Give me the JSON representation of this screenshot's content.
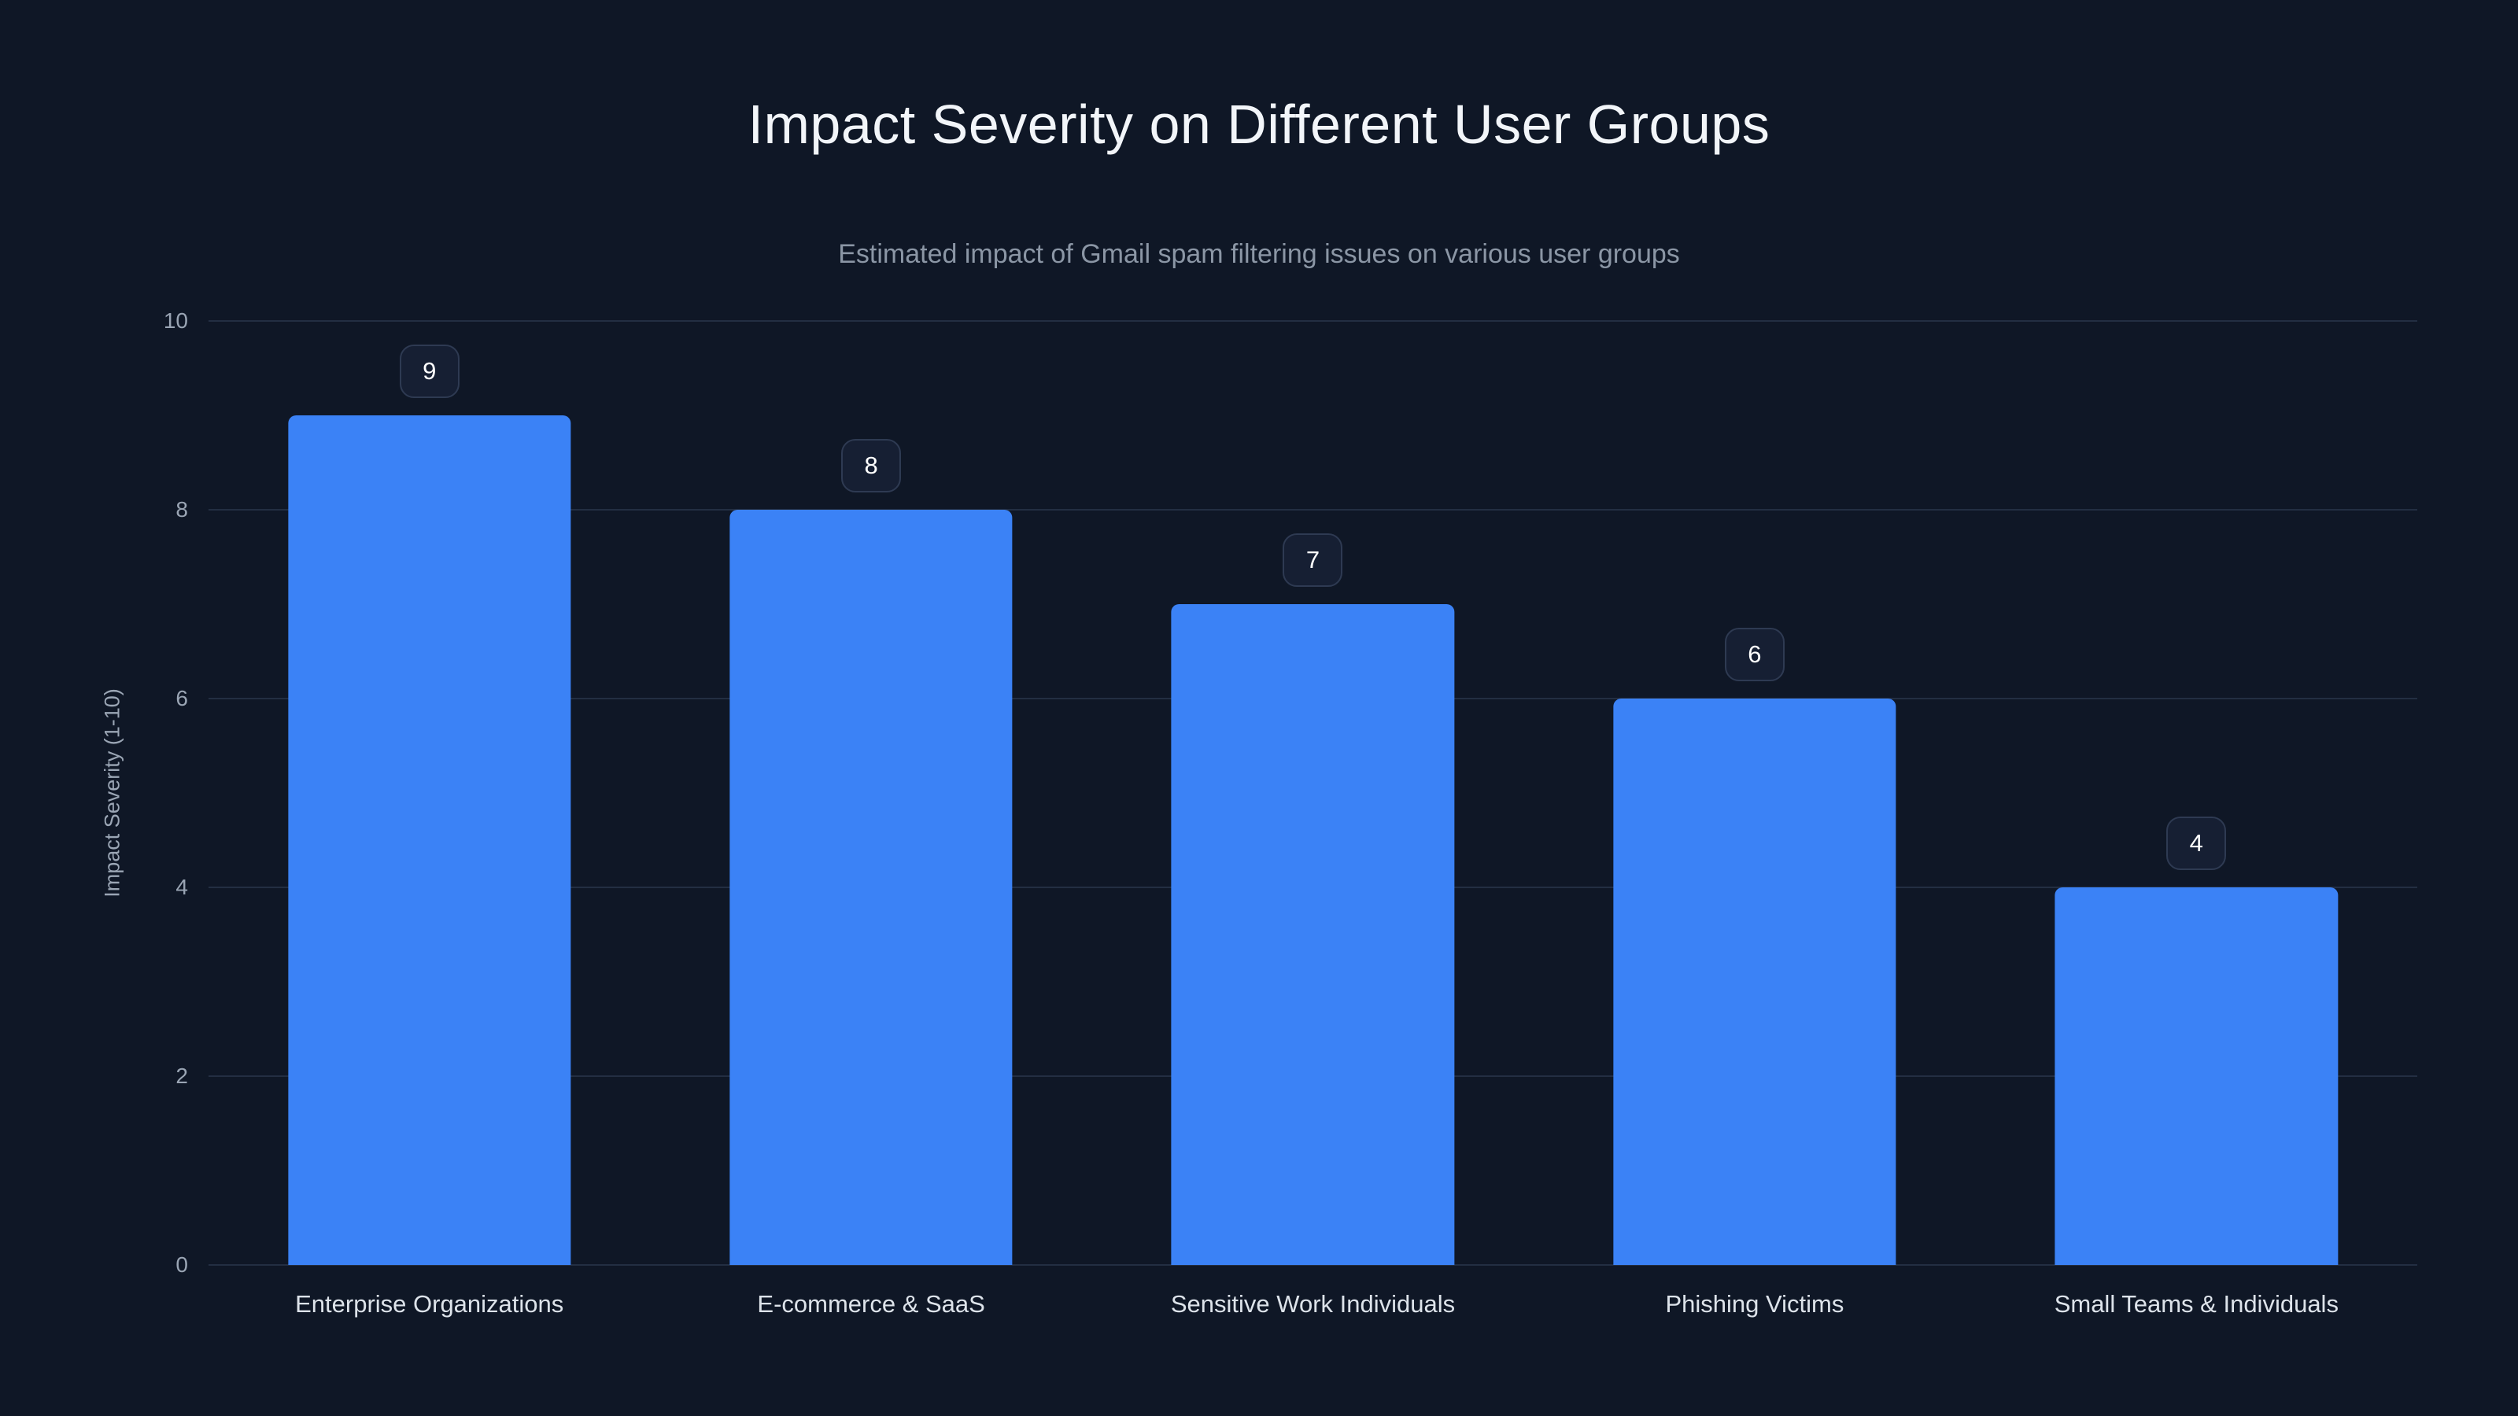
{
  "chart_data": {
    "type": "bar",
    "title": "Impact Severity on Different User Groups",
    "subtitle": "Estimated impact of Gmail spam filtering issues on various user groups",
    "categories": [
      "Enterprise Organizations",
      "E-commerce & SaaS",
      "Sensitive Work Individuals",
      "Phishing Victims",
      "Small Teams & Individuals"
    ],
    "values": [
      9,
      8,
      7,
      6,
      4
    ],
    "value_labels": [
      "9",
      "8",
      "7",
      "6",
      "4"
    ],
    "xlabel": "",
    "ylabel": "Impact Severity (1-10)",
    "ylim": [
      0,
      10
    ],
    "yticks": [
      0,
      2,
      4,
      6,
      8,
      10
    ],
    "grid": true,
    "legend": false,
    "colors": {
      "background": "#0f1726",
      "bar": "#3b82f6",
      "gridline": "#232e42",
      "title_text": "#f2f5f9",
      "subtitle_text": "#8b96a5",
      "tick_text": "#9aa5b4",
      "category_text": "#dde3ea",
      "badge_background": "#161f33",
      "badge_border": "#2e3a52",
      "badge_text": "#ffffff"
    }
  }
}
